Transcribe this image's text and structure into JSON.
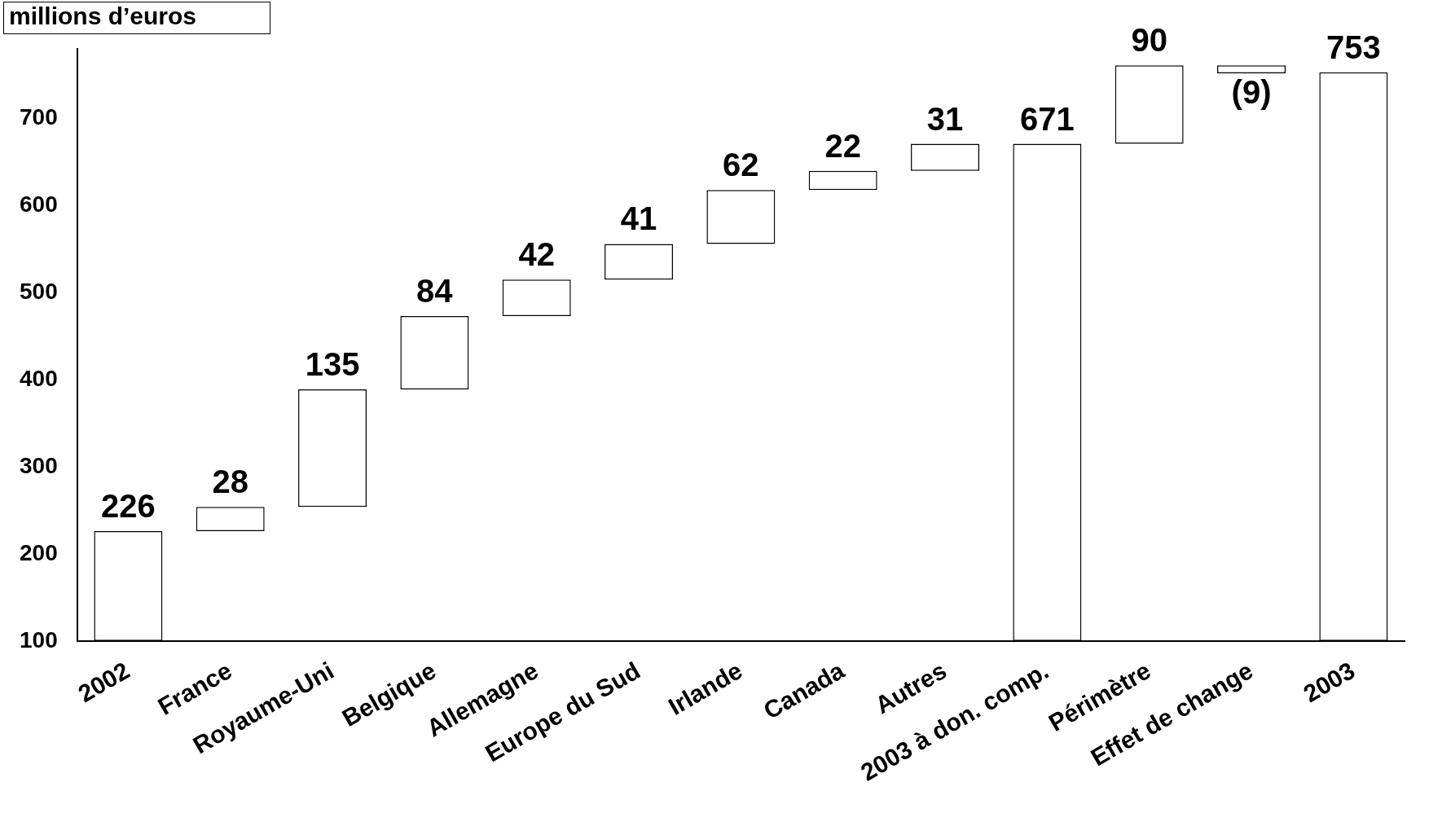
{
  "chart_data": {
    "type": "bar",
    "ylabel": "millions d’euros",
    "categories": [
      "2002",
      "France",
      "Royaume-Uni",
      "Belgique",
      "Allemagne",
      "Europe du Sud",
      "Irlande",
      "Canada",
      "Autres",
      "2003 à don. comp.",
      "Périmètre",
      "Effet de change",
      "2003"
    ],
    "values": [
      226,
      28,
      135,
      84,
      42,
      41,
      62,
      22,
      31,
      671,
      90,
      -9,
      753
    ],
    "base": [
      null,
      226,
      254,
      389,
      473,
      515,
      556,
      618,
      640,
      null,
      671,
      761,
      null
    ],
    "value_labels": [
      "226",
      "28",
      "135",
      "84",
      "42",
      "41",
      "62",
      "22",
      "31",
      "671",
      "90",
      "(9)",
      "753"
    ],
    "color": "#ffffff",
    "ylim": [
      100,
      780
    ],
    "yticks": [
      100,
      200,
      300,
      400,
      500,
      600,
      700
    ],
    "grid": false,
    "legend": false
  }
}
